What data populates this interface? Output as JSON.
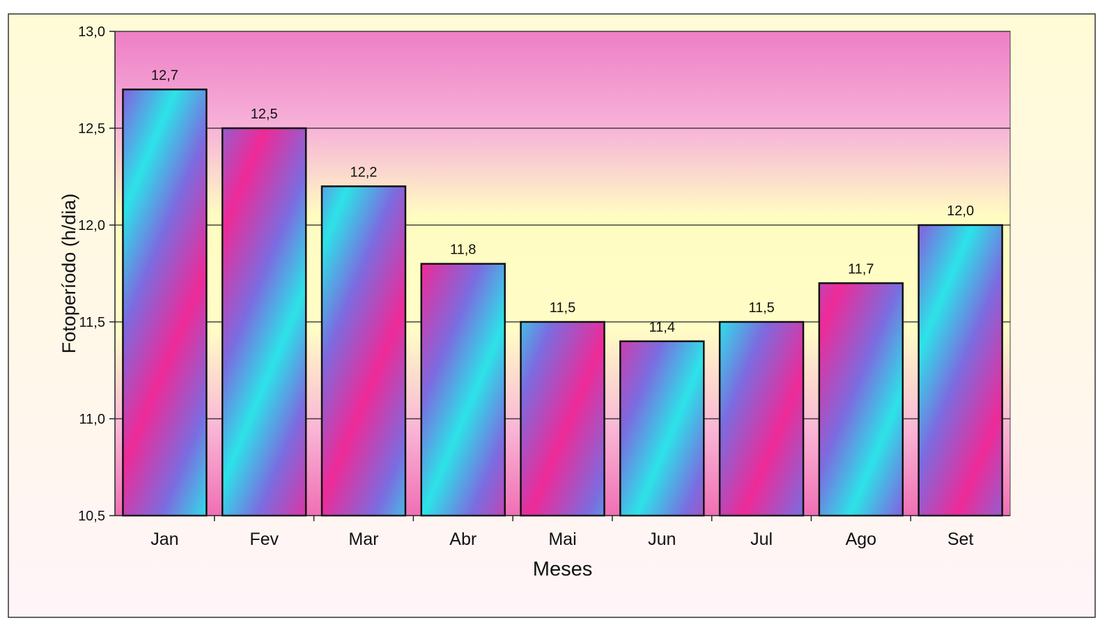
{
  "chart_data": {
    "type": "bar",
    "title": "",
    "xlabel": "Meses",
    "ylabel": "Fotoperíodo (h/dia)",
    "categories": [
      "Jan",
      "Fev",
      "Mar",
      "Abr",
      "Mai",
      "Jun",
      "Jul",
      "Ago",
      "Set"
    ],
    "values": [
      12.7,
      12.5,
      12.2,
      11.8,
      11.5,
      11.4,
      11.5,
      11.7,
      12.0
    ],
    "data_labels": [
      "12,7",
      "12,5",
      "12,2",
      "11,8",
      "11,5",
      "11,4",
      "11,5",
      "11,7",
      "12,0"
    ],
    "ylim": [
      10.5,
      13.0
    ],
    "yticks": [
      10.5,
      11.0,
      11.5,
      12.0,
      12.5,
      13.0
    ],
    "ytick_labels": [
      "10,5",
      "11,0",
      "11,5",
      "12,0",
      "12,5",
      "13,0"
    ],
    "grid": true,
    "legend": "none",
    "colors": {
      "page_bg_top": "#fffbd6",
      "page_bg_bottom": "#fff3f8",
      "plot_bg_top": "#ee7ec6",
      "plot_bg_mid": "#fffcc2",
      "plot_bg_bottom": "#f06fb4",
      "bar_cyan": "#2ce3e8",
      "bar_blue": "#7b6ce0",
      "bar_magenta": "#ee2a97",
      "outline": "#111111"
    }
  }
}
